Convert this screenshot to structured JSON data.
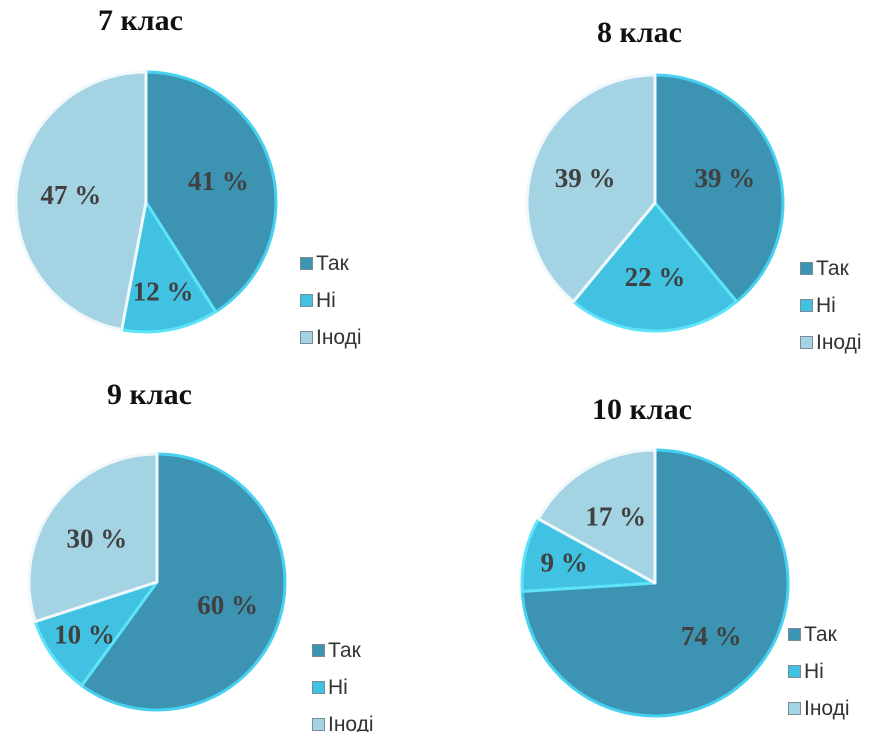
{
  "colors": {
    "tak": "#3c94b2",
    "ni": "#41c2e2",
    "inodi": "#a4d3e4",
    "edge_tak": "#47d1f0",
    "edge_ni": "#5ee4f8",
    "edge_inodi": "#f0f8fb"
  },
  "legend": [
    "Так",
    "Ні",
    "Іноді"
  ],
  "chart_data": [
    {
      "type": "pie",
      "title": "7 клас",
      "categories": [
        "Так",
        "Ні",
        "Іноді"
      ],
      "values": [
        41,
        12,
        47
      ],
      "labels": [
        "41 %",
        "12 %",
        "47 %"
      ],
      "legend_position": "right"
    },
    {
      "type": "pie",
      "title": "8 клас",
      "categories": [
        "Так",
        "Ні",
        "Іноді"
      ],
      "values": [
        39,
        22,
        39
      ],
      "labels": [
        "39 %",
        "22 %",
        "39 %"
      ],
      "legend_position": "right"
    },
    {
      "type": "pie",
      "title": "9 клас",
      "categories": [
        "Так",
        "Ні",
        "Іноді"
      ],
      "values": [
        60,
        10,
        30
      ],
      "labels": [
        "60 %",
        "10 %",
        "30 %"
      ],
      "legend_position": "right"
    },
    {
      "type": "pie",
      "title": "10 клас",
      "categories": [
        "Так",
        "Ні",
        "Іноді"
      ],
      "values": [
        74,
        9,
        17
      ],
      "labels": [
        "74 %",
        "9 %",
        "17 %"
      ],
      "legend_position": "right"
    }
  ]
}
